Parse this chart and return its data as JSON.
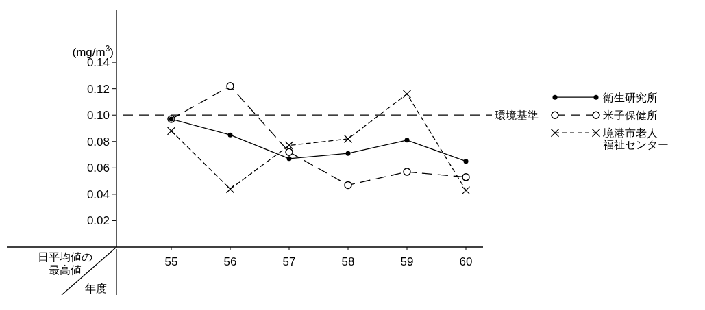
{
  "chart_data": {
    "type": "line",
    "ylabel": "日平均値の最高値",
    "xlabel": "年度",
    "annotations": [
      "(mg/m$^{3}$)"
    ],
    "categories": [
      "55",
      "56",
      "57",
      "58",
      "59",
      "60"
    ],
    "ylim": [
      0,
      0.18
    ],
    "yticks": [
      0.02,
      0.04,
      0.06,
      0.08,
      {
        "value": 0.1,
        "label": "0.10"
      },
      0.12,
      0.14
    ],
    "series": [
      {
        "name": "衛生研究所",
        "color": "#000000",
        "marker": "circle",
        "line_style": "solid",
        "values": [
          0.097,
          0.085,
          0.067,
          0.071,
          0.081,
          0.065
        ]
      },
      {
        "name": "米子保健所",
        "color": "#000000",
        "marker": "circle",
        "line_style": "dashed",
        "values": [
          0.097,
          0.122,
          0.072,
          0.047,
          0.057,
          0.053
        ]
      },
      {
        "name": "境港市老人福祉センター",
        "color": "#000000",
        "marker": "cross",
        "line_style": "dotted",
        "values": [
          0.088,
          0.044,
          0.077,
          0.082,
          0.116,
          0.043
        ]
      }
    ],
    "ref_lines": [
      {
        "axis": "y",
        "value": 0.1,
        "label": "環境基準",
        "line_style": "dashed"
      }
    ],
    "legend": "right"
  }
}
